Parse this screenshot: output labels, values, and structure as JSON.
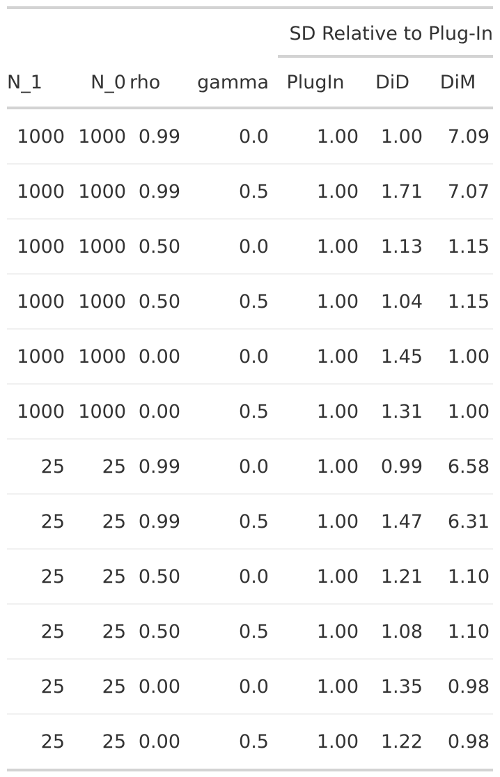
{
  "table": {
    "spanner_label": "SD Relative to Plug-In",
    "columns": [
      "N_1",
      "N_0",
      "rho",
      "gamma",
      "PlugIn",
      "DiD",
      "DiM"
    ],
    "rows": [
      [
        "1000",
        "1000",
        "0.99",
        "0.0",
        "1.00",
        "1.00",
        "7.09"
      ],
      [
        "1000",
        "1000",
        "0.99",
        "0.5",
        "1.00",
        "1.71",
        "7.07"
      ],
      [
        "1000",
        "1000",
        "0.50",
        "0.0",
        "1.00",
        "1.13",
        "1.15"
      ],
      [
        "1000",
        "1000",
        "0.50",
        "0.5",
        "1.00",
        "1.04",
        "1.15"
      ],
      [
        "1000",
        "1000",
        "0.00",
        "0.0",
        "1.00",
        "1.45",
        "1.00"
      ],
      [
        "1000",
        "1000",
        "0.00",
        "0.5",
        "1.00",
        "1.31",
        "1.00"
      ],
      [
        "25",
        "25",
        "0.99",
        "0.0",
        "1.00",
        "0.99",
        "6.58"
      ],
      [
        "25",
        "25",
        "0.99",
        "0.5",
        "1.00",
        "1.47",
        "6.31"
      ],
      [
        "25",
        "25",
        "0.50",
        "0.0",
        "1.00",
        "1.21",
        "1.10"
      ],
      [
        "25",
        "25",
        "0.50",
        "0.5",
        "1.00",
        "1.08",
        "1.10"
      ],
      [
        "25",
        "25",
        "0.00",
        "0.0",
        "1.00",
        "1.35",
        "0.98"
      ],
      [
        "25",
        "25",
        "0.00",
        "0.5",
        "1.00",
        "1.22",
        "0.98"
      ]
    ]
  }
}
